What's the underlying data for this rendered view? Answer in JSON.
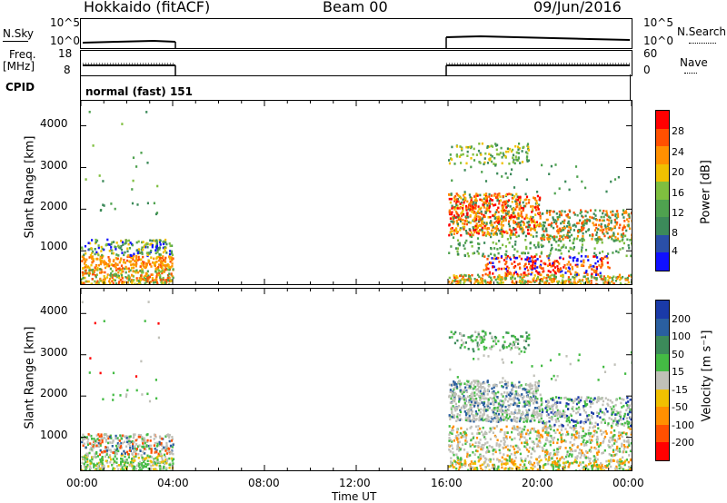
{
  "header": {
    "title": "Hokkaido (fitACF)",
    "beam": "Beam 00",
    "date": "09/Jun/2016"
  },
  "strips": {
    "nsky_label": "N.Sky",
    "nsky_ticks": [
      "10^5",
      "10^0"
    ],
    "nsearch_label": "N.Search",
    "nsearch_ticks": [
      "10^5",
      "10^0"
    ],
    "freq_label_1": "Freq.",
    "freq_label_2": "[MHz]",
    "freq_ticks": [
      "18",
      "8"
    ],
    "nave_label": "Nave",
    "nave_ticks": [
      "60",
      "0"
    ],
    "cpid_label": "CPID",
    "cpid_value": "normal (fast) 151"
  },
  "colors": {
    "power": [
      "#1010ff",
      "#2a4fa8",
      "#3c8a5a",
      "#4fa24f",
      "#7fbf3f",
      "#f0c000",
      "#ff9000",
      "#ff5000",
      "#ff0000"
    ],
    "velocity": [
      "#1a3aa8",
      "#2a5fa0",
      "#3c8a5a",
      "#44bb44",
      "#c0c0b8",
      "#f0c000",
      "#ff9000",
      "#ff5000",
      "#ff0000"
    ]
  },
  "chart_data": [
    {
      "type": "heatmap",
      "name": "power",
      "ylabel": "Slant Range [km]",
      "yticks": [
        "4000",
        "3000",
        "2000",
        "1000"
      ],
      "ylim": [
        200,
        4600
      ],
      "colorbar_label": "Power [dB]",
      "colorbar_ticks": [
        "28",
        "24",
        "20",
        "16",
        "12",
        "8",
        "4"
      ],
      "regions": [
        {
          "t0": 0.0,
          "t1": 4.0,
          "r0": 200,
          "r1": 600,
          "color": "mixed-green-orange"
        },
        {
          "t0": 0.0,
          "t1": 4.0,
          "r0": 600,
          "r1": 900,
          "color": "orange"
        },
        {
          "t0": 16.0,
          "t1": 24.0,
          "r0": 1400,
          "r1": 2400,
          "color": "orange-red"
        },
        {
          "t0": 16.0,
          "t1": 19.5,
          "r0": 3200,
          "r1": 3600,
          "color": "green"
        },
        {
          "t0": 17.5,
          "t1": 23.0,
          "r0": 300,
          "r1": 900,
          "color": "red"
        }
      ]
    },
    {
      "type": "heatmap",
      "name": "velocity",
      "ylabel": "Slant Range [km]",
      "yticks": [
        "4000",
        "3000",
        "2000",
        "1000"
      ],
      "ylim": [
        200,
        4600
      ],
      "colorbar_label": "Velocity [m s⁻¹]",
      "colorbar_ticks": [
        "200",
        "100",
        "50",
        "15",
        "-15",
        "-50",
        "-100",
        "-200"
      ],
      "xlabel": "Time UT",
      "xticks": [
        "00:00",
        "04:00",
        "08:00",
        "12:00",
        "16:00",
        "20:00",
        "00:00"
      ],
      "xlim": [
        0,
        24
      ]
    }
  ]
}
